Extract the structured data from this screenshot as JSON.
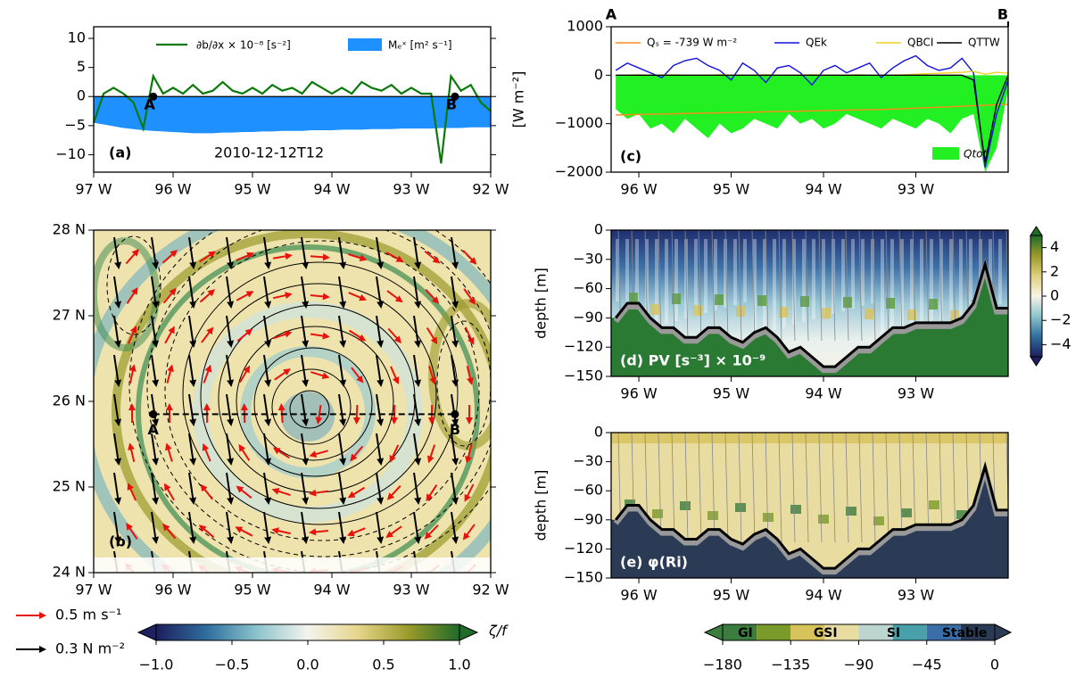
{
  "chart_data": [
    {
      "type": "line",
      "panel_label": "(a)",
      "date": "2010-12-12T12",
      "xlim": [
        -97,
        -92
      ],
      "ylim": [
        -13,
        12
      ],
      "xticks": [
        {
          "value": -97,
          "label": "97 W"
        },
        {
          "value": -96,
          "label": "96 W"
        },
        {
          "value": -95,
          "label": "95 W"
        },
        {
          "value": -94,
          "label": "94 W"
        },
        {
          "value": -93,
          "label": "93 W"
        },
        {
          "value": -92,
          "label": "92 W"
        }
      ],
      "yticks": [
        {
          "value": -10,
          "label": "−10"
        },
        {
          "value": -5,
          "label": "−5"
        },
        0,
        5,
        10
      ],
      "x": [
        -97,
        -96.875,
        -96.75,
        -96.625,
        -96.5,
        -96.375,
        -96.25,
        -96.125,
        -96,
        -95.875,
        -95.75,
        -95.625,
        -95.5,
        -95.375,
        -95.25,
        -95.125,
        -95,
        -94.875,
        -94.75,
        -94.625,
        -94.5,
        -94.375,
        -94.25,
        -94.125,
        -94,
        -93.875,
        -93.75,
        -93.625,
        -93.5,
        -93.375,
        -93.25,
        -93.125,
        -93,
        -92.875,
        -92.75,
        -92.625,
        -92.5,
        -92.375,
        -92.25,
        -92.125,
        -92
      ],
      "series": [
        {
          "name": "Mₑˣ [m² s⁻¹]",
          "color": "#1e90ff",
          "style": "area",
          "values": [
            -4.5,
            -4.8,
            -5.1,
            -5.4,
            -5.6,
            -5.8,
            -5.9,
            -6.0,
            -6.1,
            -6.2,
            -6.3,
            -6.3,
            -6.3,
            -6.2,
            -6.2,
            -6.1,
            -6.1,
            -6.0,
            -6.0,
            -5.9,
            -5.9,
            -5.9,
            -5.8,
            -5.8,
            -5.8,
            -5.7,
            -5.7,
            -5.7,
            -5.6,
            -5.6,
            -5.6,
            -5.5,
            -5.5,
            -5.5,
            -5.5,
            -5.4,
            -5.4,
            -5.4,
            -5.3,
            -5.3,
            -5.3
          ]
        },
        {
          "name": "∂b/∂x × 10⁻⁸ [s⁻²]",
          "color": "#0a7a0a",
          "style": "line",
          "values": [
            -4.5,
            0.5,
            1.5,
            0.5,
            -1,
            -5.5,
            3.5,
            0.5,
            1.5,
            0.5,
            2,
            0.5,
            1,
            2.5,
            1,
            0.5,
            1.5,
            0.5,
            2,
            1,
            1.5,
            0.5,
            2.5,
            1.5,
            0.5,
            1.5,
            0.5,
            2.5,
            1.5,
            1,
            2,
            0.5,
            1.5,
            0.5,
            0.5,
            -11.5,
            3.5,
            1,
            2,
            -1,
            -2.5
          ]
        }
      ],
      "points": [
        {
          "label": "A",
          "x": -96.25,
          "y": 0
        },
        {
          "label": "B",
          "x": -92.45,
          "y": 0
        }
      ]
    },
    {
      "type": "map",
      "panel_label": "(b)",
      "xlim": [
        -97,
        -92
      ],
      "ylim": [
        24,
        28
      ],
      "xticks": [
        {
          "value": -97,
          "label": "97 W"
        },
        {
          "value": -96,
          "label": "96 W"
        },
        {
          "value": -95,
          "label": "95 W"
        },
        {
          "value": -94,
          "label": "94 W"
        },
        {
          "value": -93,
          "label": "93 W"
        },
        {
          "value": -92,
          "label": "92 W"
        }
      ],
      "yticks": [
        {
          "value": 24,
          "label": "24 N"
        },
        {
          "value": 25,
          "label": "25 N"
        },
        {
          "value": 26,
          "label": "26 N"
        },
        {
          "value": 27,
          "label": "27 N"
        },
        {
          "value": 28,
          "label": "28 N"
        }
      ],
      "points": [
        {
          "label": "A",
          "x": -96.25,
          "y": 25.85
        },
        {
          "label": "B",
          "x": -92.45,
          "y": 25.85
        }
      ],
      "colorbar": {
        "label": "ζ/f",
        "lim": [
          -1,
          1
        ],
        "colors": [
          "#1d1f5e",
          "#2f6e9e",
          "#8cc4cc",
          "#f4f4ee",
          "#e6d48a",
          "#9a9a2a",
          "#1e6b2a"
        ],
        "ticks": [
          {
            "value": -1,
            "label": "−1.0"
          },
          {
            "value": -0.5,
            "label": "−0.5"
          },
          {
            "value": 0,
            "label": "0.0"
          },
          {
            "value": 0.5,
            "label": "0.5"
          },
          {
            "value": 1,
            "label": "1.0"
          }
        ]
      },
      "arrow_legend": [
        {
          "label": "0.5 m s⁻¹",
          "color": "#e8120c"
        },
        {
          "label": "0.3 N m⁻²",
          "color": "#000000"
        }
      ]
    },
    {
      "type": "line",
      "panel_label": "(c)",
      "ylabel": "[W m⁻²]",
      "top_labels": [
        "A",
        "B"
      ],
      "xlim": [
        -96.3,
        -92.0
      ],
      "ylim": [
        -2000,
        1000
      ],
      "xticks": [
        {
          "value": -96,
          "label": "96 W"
        },
        {
          "value": -95,
          "label": "95 W"
        },
        {
          "value": -94,
          "label": "94 W"
        },
        {
          "value": -93,
          "label": "93 W"
        }
      ],
      "yticks": [
        {
          "value": -2000,
          "label": "−2000"
        },
        {
          "value": -1000,
          "label": "−1000"
        },
        0,
        1000
      ],
      "x": [
        -96.25,
        -96.125,
        -96,
        -95.875,
        -95.75,
        -95.625,
        -95.5,
        -95.375,
        -95.25,
        -95.125,
        -95,
        -94.875,
        -94.75,
        -94.625,
        -94.5,
        -94.375,
        -94.25,
        -94.125,
        -94,
        -93.875,
        -93.75,
        -93.625,
        -93.5,
        -93.375,
        -93.25,
        -93.125,
        -93,
        -92.875,
        -92.75,
        -92.625,
        -92.5,
        -92.375,
        -92.25,
        -92.125,
        -92
      ],
      "series": [
        {
          "name": "Qtot",
          "color": "#22f022",
          "style": "area",
          "values": [
            -700,
            -900,
            -800,
            -1100,
            -1000,
            -1200,
            -900,
            -1100,
            -1300,
            -1000,
            -1200,
            -1100,
            -900,
            -1000,
            -1100,
            -800,
            -1000,
            -900,
            -1100,
            -1000,
            -800,
            -900,
            -1000,
            -1100,
            -900,
            -1000,
            -1100,
            -900,
            -1000,
            -1200,
            -900,
            -800,
            -2000,
            -1500,
            -300
          ]
        },
        {
          "name": "Qₛ = -739 W m⁻²",
          "color": "#ff8c1a",
          "style": "line",
          "values": [
            -820,
            -815,
            -810,
            -805,
            -800,
            -795,
            -790,
            -785,
            -780,
            -775,
            -770,
            -765,
            -760,
            -755,
            -750,
            -745,
            -740,
            -735,
            -730,
            -725,
            -720,
            -715,
            -710,
            -705,
            -700,
            -690,
            -680,
            -670,
            -660,
            -650,
            -640,
            -630,
            -620,
            -610,
            -600
          ]
        },
        {
          "name": "QEk",
          "color": "#1010e0",
          "style": "line",
          "values": [
            100,
            250,
            150,
            50,
            -50,
            200,
            300,
            350,
            200,
            100,
            -100,
            250,
            100,
            -150,
            150,
            200,
            50,
            -200,
            100,
            200,
            50,
            150,
            250,
            -50,
            150,
            300,
            400,
            200,
            100,
            150,
            350,
            50,
            -1900,
            -800,
            -100
          ]
        },
        {
          "name": "QBCI",
          "color": "#f0d020",
          "style": "line",
          "values": [
            0,
            0,
            10,
            0,
            0,
            10,
            0,
            0,
            0,
            10,
            0,
            0,
            0,
            10,
            0,
            0,
            0,
            10,
            0,
            0,
            0,
            10,
            0,
            0,
            0,
            10,
            20,
            30,
            40,
            50,
            60,
            80,
            20,
            60,
            40
          ]
        },
        {
          "name": "QTTW",
          "color": "#000000",
          "style": "line",
          "values": [
            0,
            0,
            0,
            0,
            0,
            0,
            0,
            0,
            0,
            0,
            0,
            0,
            0,
            0,
            0,
            0,
            0,
            0,
            0,
            0,
            0,
            0,
            0,
            0,
            0,
            0,
            0,
            0,
            0,
            0,
            0,
            -100,
            -1800,
            -600,
            0
          ]
        }
      ]
    },
    {
      "type": "section",
      "panel_label": "(d) PV [s⁻³] × 10⁻⁹",
      "ylabel": "depth [m]",
      "xlim": [
        -96.3,
        -92.0
      ],
      "ylim": [
        -150,
        0
      ],
      "xticks": [
        {
          "value": -96,
          "label": "96 W"
        },
        {
          "value": -95,
          "label": "95 W"
        },
        {
          "value": -94,
          "label": "94 W"
        },
        {
          "value": -93,
          "label": "93 W"
        }
      ],
      "yticks": [
        {
          "value": -150,
          "label": "−150"
        },
        {
          "value": -120,
          "label": "−120"
        },
        {
          "value": -90,
          "label": "−90"
        },
        {
          "value": -60,
          "label": "−60"
        },
        {
          "value": -30,
          "label": "−30"
        },
        0
      ],
      "x": [
        -96.25,
        -96.125,
        -96,
        -95.875,
        -95.75,
        -95.625,
        -95.5,
        -95.375,
        -95.25,
        -95.125,
        -95,
        -94.875,
        -94.75,
        -94.625,
        -94.5,
        -94.375,
        -94.25,
        -94.125,
        -94,
        -93.875,
        -93.75,
        -93.625,
        -93.5,
        -93.375,
        -93.25,
        -93.125,
        -93,
        -92.875,
        -92.75,
        -92.625,
        -92.5,
        -92.375,
        -92.25,
        -92.125,
        -92
      ],
      "values": [
        -90,
        -75,
        -75,
        -90,
        -100,
        -100,
        -110,
        -110,
        -100,
        -100,
        -110,
        -115,
        -105,
        -100,
        -110,
        -125,
        -120,
        -130,
        -140,
        -140,
        -130,
        -120,
        -120,
        -110,
        -100,
        -100,
        -95,
        -95,
        -95,
        -95,
        -90,
        -75,
        -35,
        -80,
        -80
      ],
      "below_color": "#2b7a34",
      "colorbar": {
        "lim": [
          -5,
          5
        ],
        "colors": [
          "#1d1f5e",
          "#2f6e9e",
          "#8cc4cc",
          "#f7f4e6",
          "#e0cf7f",
          "#9a9a2a",
          "#1e6b2a"
        ],
        "ticks": [
          {
            "value": -4,
            "label": "−4"
          },
          {
            "value": -2,
            "label": "−2"
          },
          0,
          2,
          4
        ]
      }
    },
    {
      "type": "section",
      "panel_label": "(e) φ(Ri)",
      "ylabel": "depth [m]",
      "xlim": [
        -96.3,
        -92.0
      ],
      "ylim": [
        -150,
        0
      ],
      "xticks": [
        {
          "value": -96,
          "label": "96 W"
        },
        {
          "value": -95,
          "label": "95 W"
        },
        {
          "value": -94,
          "label": "94 W"
        },
        {
          "value": -93,
          "label": "93 W"
        }
      ],
      "yticks": [
        {
          "value": -150,
          "label": "−150"
        },
        {
          "value": -120,
          "label": "−120"
        },
        {
          "value": -90,
          "label": "−90"
        },
        {
          "value": -60,
          "label": "−60"
        },
        {
          "value": -30,
          "label": "−30"
        },
        0
      ],
      "x": [
        -96.25,
        -96.125,
        -96,
        -95.875,
        -95.75,
        -95.625,
        -95.5,
        -95.375,
        -95.25,
        -95.125,
        -95,
        -94.875,
        -94.75,
        -94.625,
        -94.5,
        -94.375,
        -94.25,
        -94.125,
        -94,
        -93.875,
        -93.75,
        -93.625,
        -93.5,
        -93.375,
        -93.25,
        -93.125,
        -93,
        -92.875,
        -92.75,
        -92.625,
        -92.5,
        -92.375,
        -92.25,
        -92.125,
        -92
      ],
      "values": [
        -90,
        -75,
        -75,
        -90,
        -100,
        -100,
        -110,
        -110,
        -100,
        -100,
        -110,
        -115,
        -105,
        -100,
        -110,
        -125,
        -120,
        -130,
        -140,
        -140,
        -130,
        -120,
        -120,
        -110,
        -100,
        -100,
        -95,
        -95,
        -95,
        -95,
        -90,
        -75,
        -35,
        -80,
        -80
      ],
      "below_color": "#2b3a55",
      "colorbar": {
        "lim": [
          -180,
          0
        ],
        "ticks": [
          {
            "value": -180,
            "label": "−180"
          },
          {
            "value": -135,
            "label": "−135"
          },
          {
            "value": -90,
            "label": "−90"
          },
          {
            "value": -45,
            "label": "−45"
          },
          0
        ],
        "segments": [
          {
            "from": -180,
            "to": -157.5,
            "color": "#3a7d3e"
          },
          {
            "from": -157.5,
            "to": -135,
            "color": "#7a9a2a"
          },
          {
            "from": -135,
            "to": -112.5,
            "color": "#d8c25a"
          },
          {
            "from": -112.5,
            "to": -90,
            "color": "#e9dca0"
          },
          {
            "from": -90,
            "to": -67.5,
            "color": "#bcd6cf"
          },
          {
            "from": -67.5,
            "to": -45,
            "color": "#4aa0aa"
          },
          {
            "from": -45,
            "to": -22.5,
            "color": "#3a6ea8"
          },
          {
            "from": -22.5,
            "to": 0,
            "color": "#2b3a55"
          }
        ],
        "classes": [
          {
            "label": "GI",
            "value": -165
          },
          {
            "label": "GSI",
            "value": -112
          },
          {
            "label": "SI",
            "value": -67
          },
          {
            "label": "Stable",
            "value": -20
          }
        ]
      }
    }
  ]
}
